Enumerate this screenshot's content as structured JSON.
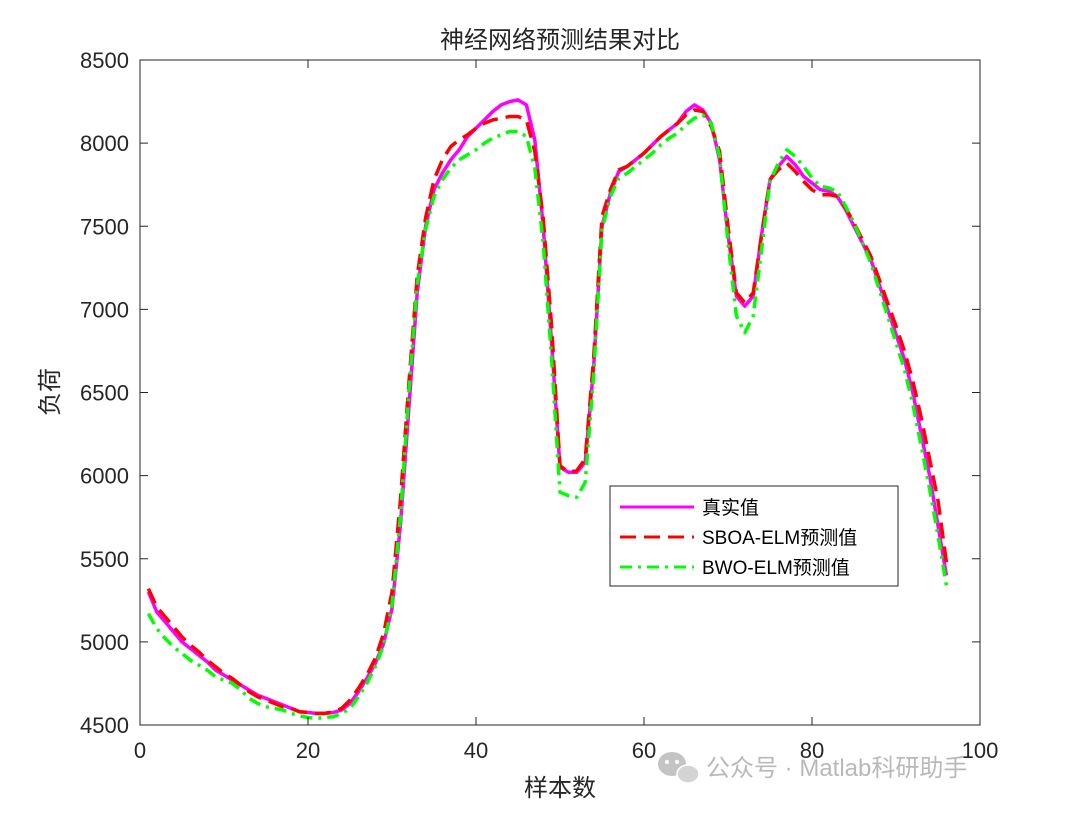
{
  "chart_data": {
    "type": "line",
    "title": "神经网络预测结果对比",
    "xlabel": "样本数",
    "ylabel": "负荷",
    "xlim": [
      0,
      100
    ],
    "ylim": [
      4500,
      8500
    ],
    "xticks": [
      0,
      20,
      40,
      60,
      80,
      100
    ],
    "yticks": [
      4500,
      5000,
      5500,
      6000,
      6500,
      7000,
      7500,
      8000,
      8500
    ],
    "legend_position": "middle-right",
    "x": [
      1,
      2,
      3,
      4,
      5,
      6,
      7,
      8,
      9,
      10,
      11,
      12,
      13,
      14,
      15,
      16,
      17,
      18,
      19,
      20,
      21,
      22,
      23,
      24,
      25,
      26,
      27,
      28,
      29,
      30,
      31,
      32,
      33,
      34,
      35,
      36,
      37,
      38,
      39,
      40,
      41,
      42,
      43,
      44,
      45,
      46,
      47,
      48,
      49,
      50,
      51,
      52,
      53,
      54,
      55,
      56,
      57,
      58,
      59,
      60,
      61,
      62,
      63,
      64,
      65,
      66,
      67,
      68,
      69,
      70,
      71,
      72,
      73,
      74,
      75,
      76,
      77,
      78,
      79,
      80,
      81,
      82,
      83,
      84,
      85,
      86,
      87,
      88,
      89,
      90,
      91,
      92,
      93,
      94,
      95,
      96
    ],
    "series": [
      {
        "name": "真实值",
        "color": "#ff00ff",
        "dash": "solid",
        "values": [
          5300,
          5180,
          5120,
          5060,
          5000,
          4960,
          4920,
          4880,
          4830,
          4800,
          4770,
          4740,
          4710,
          4680,
          4660,
          4640,
          4620,
          4600,
          4580,
          4575,
          4570,
          4570,
          4575,
          4590,
          4630,
          4700,
          4780,
          4870,
          4990,
          5200,
          5700,
          6400,
          7100,
          7500,
          7720,
          7820,
          7900,
          7960,
          8040,
          8090,
          8140,
          8190,
          8230,
          8250,
          8260,
          8230,
          8020,
          7500,
          6800,
          6050,
          6020,
          6020,
          6080,
          6650,
          7500,
          7700,
          7830,
          7860,
          7900,
          7940,
          7990,
          8040,
          8080,
          8120,
          8190,
          8230,
          8200,
          8120,
          7900,
          7450,
          7080,
          7020,
          7080,
          7450,
          7780,
          7860,
          7920,
          7870,
          7800,
          7760,
          7720,
          7710,
          7680,
          7600,
          7500,
          7400,
          7300,
          7150,
          7000,
          6850,
          6700,
          6500,
          6250,
          6000,
          5700,
          5400
        ]
      },
      {
        "name": "SBOA-ELM预测值",
        "color": "#ff0000",
        "dash": "dashed",
        "values": [
          5320,
          5210,
          5150,
          5090,
          5030,
          4980,
          4940,
          4890,
          4850,
          4810,
          4780,
          4740,
          4700,
          4670,
          4650,
          4630,
          4610,
          4600,
          4580,
          4575,
          4570,
          4570,
          4580,
          4600,
          4650,
          4720,
          4800,
          4900,
          5050,
          5300,
          5850,
          6550,
          7200,
          7550,
          7780,
          7900,
          7980,
          8020,
          8050,
          8090,
          8120,
          8140,
          8150,
          8160,
          8160,
          8140,
          7950,
          7550,
          6900,
          6060,
          6020,
          6030,
          6100,
          6700,
          7560,
          7720,
          7840,
          7860,
          7900,
          7940,
          7990,
          8040,
          8080,
          8120,
          8170,
          8200,
          8190,
          8100,
          7950,
          7500,
          7100,
          7040,
          7100,
          7450,
          7780,
          7840,
          7880,
          7830,
          7770,
          7720,
          7690,
          7690,
          7680,
          7610,
          7520,
          7420,
          7320,
          7180,
          7040,
          6900,
          6750,
          6570,
          6350,
          6100,
          5850,
          5480
        ]
      },
      {
        "name": "BWO-ELM预测值",
        "color": "#00ff00",
        "dash": "dashdot",
        "values": [
          5170,
          5080,
          5020,
          4970,
          4930,
          4890,
          4860,
          4830,
          4790,
          4770,
          4750,
          4710,
          4660,
          4630,
          4610,
          4600,
          4590,
          4570,
          4555,
          4545,
          4540,
          4545,
          4550,
          4570,
          4600,
          4670,
          4750,
          4850,
          4980,
          5220,
          5750,
          6500,
          7150,
          7480,
          7680,
          7780,
          7850,
          7900,
          7930,
          7960,
          8000,
          8030,
          8050,
          8070,
          8070,
          8040,
          7850,
          7400,
          6700,
          5900,
          5880,
          5870,
          5960,
          6600,
          7480,
          7680,
          7790,
          7820,
          7860,
          7900,
          7940,
          7990,
          8030,
          8060,
          8110,
          8150,
          8170,
          8120,
          7920,
          7400,
          6960,
          6860,
          6960,
          7360,
          7770,
          7880,
          7960,
          7920,
          7860,
          7790,
          7740,
          7730,
          7710,
          7620,
          7520,
          7400,
          7280,
          7120,
          6960,
          6800,
          6640,
          6430,
          6180,
          5920,
          5640,
          5340
        ]
      }
    ]
  },
  "watermark": {
    "text": "公众号 · Matlab科研助手"
  }
}
